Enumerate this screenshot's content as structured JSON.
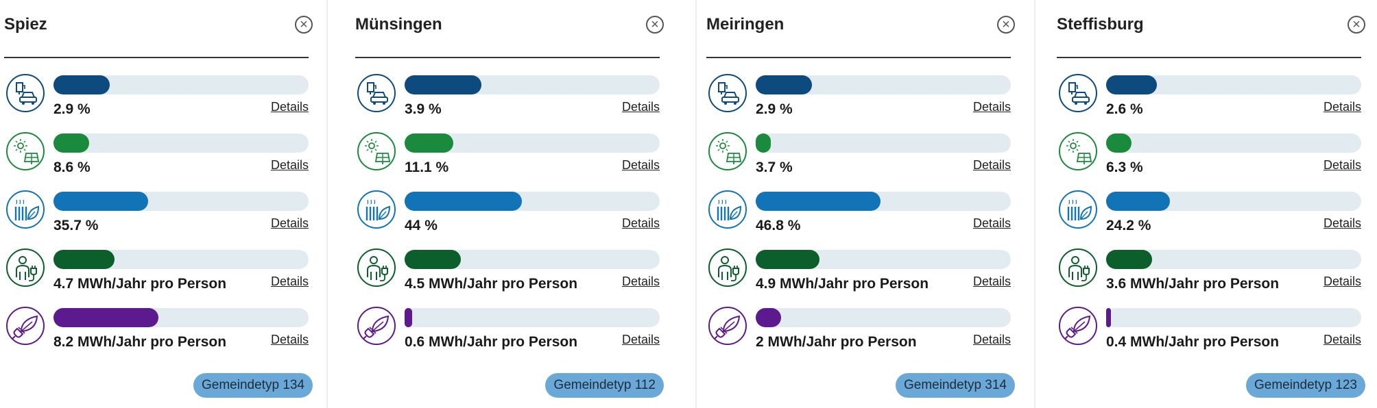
{
  "colors": {
    "mobility": "#0d4a7e",
    "solar": "#1a8a3c",
    "heating": "#1273b6",
    "energy": "#0c5e2a",
    "consumption": "#5c1a8e",
    "track": "#e2ebf0",
    "badge": "#6aa8d8"
  },
  "metrics": [
    {
      "key": "mobility",
      "icon": "ev-charging-icon"
    },
    {
      "key": "solar",
      "icon": "solar-panel-icon"
    },
    {
      "key": "heating",
      "icon": "renewable-heating-icon"
    },
    {
      "key": "energy",
      "icon": "person-plug-icon"
    },
    {
      "key": "consumption",
      "icon": "leaf-plug-icon"
    }
  ],
  "details_label": "Details",
  "cards": [
    {
      "title": "Spiez",
      "close_symbol": "×",
      "rows": [
        {
          "value": "2.9 %",
          "fill_pct": 22
        },
        {
          "value": "8.6 %",
          "fill_pct": 14
        },
        {
          "value": "35.7 %",
          "fill_pct": 37
        },
        {
          "value": "4.7 MWh/Jahr pro Person",
          "fill_pct": 24
        },
        {
          "value": "8.2 MWh/Jahr pro Person",
          "fill_pct": 41
        }
      ],
      "badge": "Gemeindetyp 134"
    },
    {
      "title": "Münsingen",
      "close_symbol": "×",
      "rows": [
        {
          "value": "3.9 %",
          "fill_pct": 30
        },
        {
          "value": "11.1 %",
          "fill_pct": 19
        },
        {
          "value": "44 %",
          "fill_pct": 46
        },
        {
          "value": "4.5 MWh/Jahr pro Person",
          "fill_pct": 22
        },
        {
          "value": "0.6 MWh/Jahr pro Person",
          "fill_pct": 3
        }
      ],
      "badge": "Gemeindetyp 112"
    },
    {
      "title": "Meiringen",
      "close_symbol": "×",
      "rows": [
        {
          "value": "2.9 %",
          "fill_pct": 22
        },
        {
          "value": "3.7 %",
          "fill_pct": 6
        },
        {
          "value": "46.8 %",
          "fill_pct": 49
        },
        {
          "value": "4.9 MWh/Jahr pro Person",
          "fill_pct": 25
        },
        {
          "value": "2 MWh/Jahr pro Person",
          "fill_pct": 10
        }
      ],
      "badge": "Gemeindetyp 314"
    },
    {
      "title": "Steffisburg",
      "close_symbol": "×",
      "rows": [
        {
          "value": "2.6 %",
          "fill_pct": 20
        },
        {
          "value": "6.3 %",
          "fill_pct": 10
        },
        {
          "value": "24.2 %",
          "fill_pct": 25
        },
        {
          "value": "3.6 MWh/Jahr pro Person",
          "fill_pct": 18
        },
        {
          "value": "0.4 MWh/Jahr pro Person",
          "fill_pct": 2
        }
      ],
      "badge": "Gemeindetyp 123"
    }
  ]
}
